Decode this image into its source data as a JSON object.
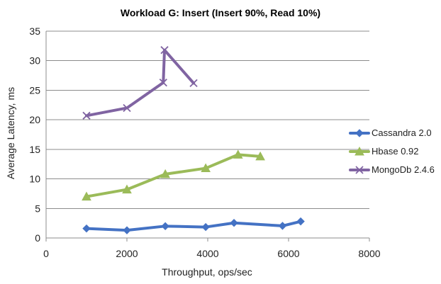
{
  "chart_data": {
    "type": "line",
    "title": "Workload G: Insert (Insert 90%, Read 10%)",
    "xlabel": "Throughput, ops/sec",
    "ylabel": "Average Latency, ms",
    "xlim": [
      0,
      8000
    ],
    "ylim": [
      0,
      35
    ],
    "xticks": [
      0,
      2000,
      4000,
      6000,
      8000
    ],
    "yticks": [
      0,
      5,
      10,
      15,
      20,
      25,
      30,
      35
    ],
    "grid": true,
    "legend_position": "right",
    "series": [
      {
        "name": "Cassandra 2.0",
        "color": "#4472c4",
        "marker": "diamond",
        "points": [
          [
            1000,
            1.6
          ],
          [
            2000,
            1.3
          ],
          [
            2950,
            2.0
          ],
          [
            3950,
            1.85
          ],
          [
            4650,
            2.55
          ],
          [
            5850,
            2.05
          ],
          [
            6300,
            2.8
          ]
        ]
      },
      {
        "name": "Hbase 0.92",
        "color": "#9bbb59",
        "marker": "triangle",
        "points": [
          [
            1000,
            7.0
          ],
          [
            2000,
            8.2
          ],
          [
            2950,
            10.8
          ],
          [
            3950,
            11.8
          ],
          [
            4750,
            14.1
          ],
          [
            5300,
            13.8
          ]
        ]
      },
      {
        "name": "MongoDb 2.4.6",
        "color": "#8064a2",
        "marker": "x",
        "points": [
          [
            1000,
            20.7
          ],
          [
            2000,
            22.0
          ],
          [
            2900,
            26.3
          ],
          [
            2930,
            31.8
          ],
          [
            3650,
            26.2
          ]
        ]
      }
    ]
  }
}
